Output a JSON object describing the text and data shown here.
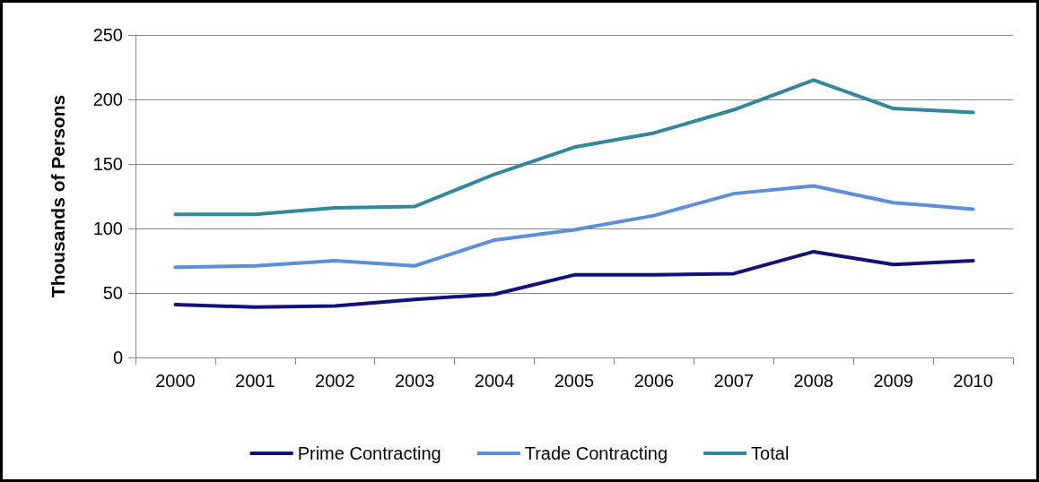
{
  "chart_data": {
    "type": "line",
    "ylabel": "Thousands of Persons",
    "categories": [
      "2000",
      "2001",
      "2002",
      "2003",
      "2004",
      "2005",
      "2006",
      "2007",
      "2008",
      "2009",
      "2010"
    ],
    "series": [
      {
        "name": "Prime Contracting",
        "color": "#10127a",
        "values": [
          41,
          39,
          40,
          45,
          49,
          64,
          64,
          65,
          82,
          72,
          75
        ]
      },
      {
        "name": "Trade Contracting",
        "color": "#5b8fdc",
        "values": [
          70,
          71,
          75,
          71,
          91,
          99,
          110,
          127,
          133,
          120,
          115
        ]
      },
      {
        "name": "Total",
        "color": "#31879b",
        "values": [
          111,
          111,
          116,
          117,
          142,
          163,
          174,
          192,
          215,
          193,
          190
        ]
      }
    ],
    "ylim": [
      0,
      250
    ],
    "yticks": [
      0,
      50,
      100,
      150,
      200,
      250
    ],
    "grid": "y",
    "legend": "bottom",
    "marker": "none",
    "line_style": "solid"
  }
}
